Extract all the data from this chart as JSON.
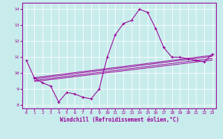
{
  "title": "",
  "xlabel": "Windchill (Refroidissement éolien,°C)",
  "ylabel": "",
  "bg_color": "#c8ecec",
  "line_color": "#990099",
  "grid_color": "#ffffff",
  "x_data": [
    0,
    1,
    2,
    3,
    4,
    5,
    6,
    7,
    8,
    9,
    10,
    11,
    12,
    13,
    14,
    15,
    16,
    17,
    18,
    19,
    20,
    21,
    22,
    23
  ],
  "y_main": [
    10.8,
    9.7,
    9.4,
    9.2,
    8.2,
    8.8,
    8.7,
    8.5,
    8.4,
    9.0,
    11.0,
    12.4,
    13.1,
    13.3,
    14.0,
    13.8,
    12.8,
    11.6,
    11.0,
    11.0,
    10.9,
    10.8,
    10.7,
    11.2
  ],
  "ylim": [
    7.8,
    14.4
  ],
  "xlim": [
    -0.5,
    23.5
  ],
  "yticks": [
    8,
    9,
    10,
    11,
    12,
    13,
    14
  ],
  "xticks": [
    0,
    1,
    2,
    3,
    4,
    5,
    6,
    7,
    8,
    9,
    10,
    11,
    12,
    13,
    14,
    15,
    16,
    17,
    18,
    19,
    20,
    21,
    22,
    23
  ],
  "reg_lines": [
    {
      "x0": 1,
      "y0": 9.65,
      "x1": 23,
      "y1": 11.05
    },
    {
      "x0": 1,
      "y0": 9.72,
      "x1": 23,
      "y1": 11.12
    },
    {
      "x0": 1,
      "y0": 9.55,
      "x1": 23,
      "y1": 10.92
    },
    {
      "x0": 1,
      "y0": 9.48,
      "x1": 23,
      "y1": 10.82
    }
  ]
}
